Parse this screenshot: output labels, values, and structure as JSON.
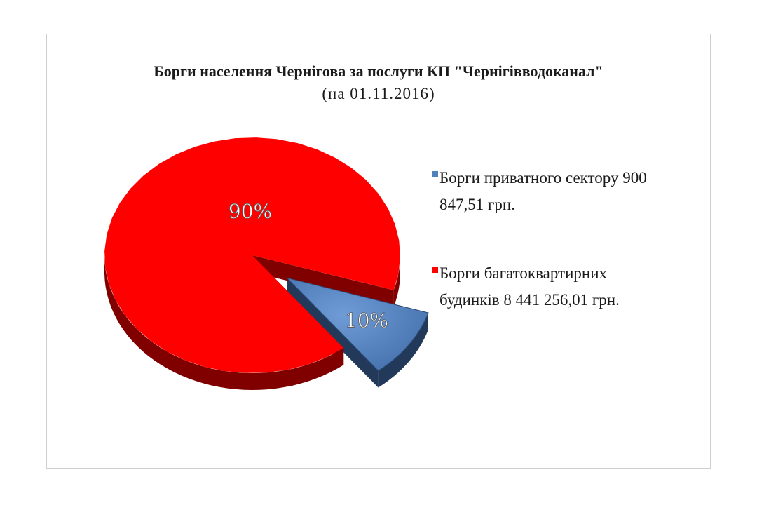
{
  "chart_data": {
    "type": "pie",
    "title": "Борги населення Чернігова за послуги КП \"Чернігівводоканал\"",
    "subtitle": "(на 01.11.2016)",
    "series": [
      {
        "name": "Борги приватного сектору 900 847,51 грн.",
        "value": 900847.51,
        "percent_label": "10%",
        "color": "#4f81bd",
        "side_color": "#23395a",
        "exploded": true
      },
      {
        "name": "Борги багатоквартирних будинків 8 441 256,01 грн.",
        "value": 8441256.01,
        "percent_label": "90%",
        "color": "#ff0000",
        "side_color": "#800000",
        "exploded": false
      }
    ],
    "legend_position": "right"
  }
}
